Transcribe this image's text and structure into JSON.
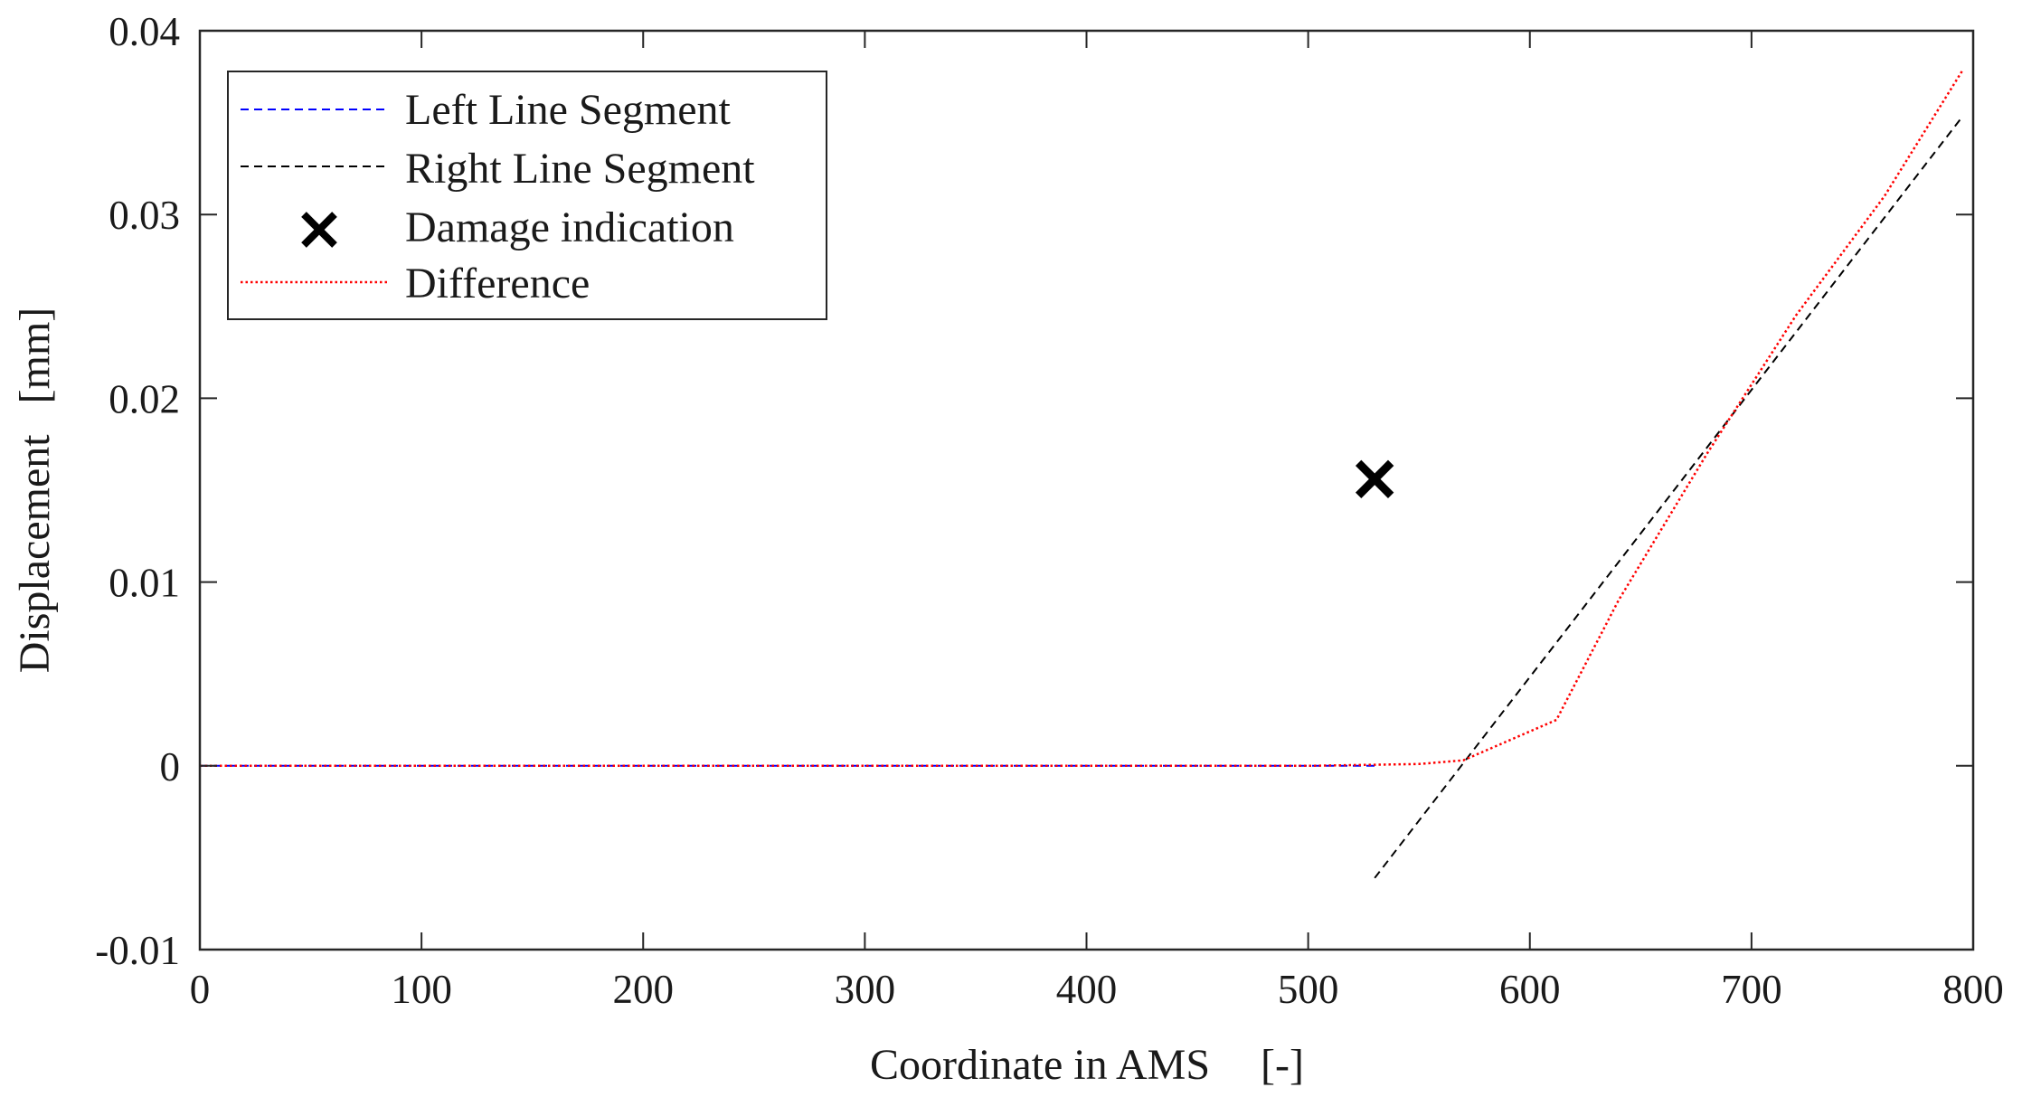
{
  "chart_data": {
    "type": "line",
    "title": "",
    "xlabel": "Coordinate in AMS",
    "xlabel_unit": "[-]",
    "ylabel": "Displacement",
    "ylabel_unit": "[mm]",
    "xlim": [
      0,
      800
    ],
    "ylim": [
      -0.01,
      0.04
    ],
    "xticks": [
      0,
      100,
      200,
      300,
      400,
      500,
      600,
      700,
      800
    ],
    "yticks": [
      -0.01,
      0,
      0.01,
      0.02,
      0.03,
      0.04
    ],
    "xtick_labels": [
      "0",
      "100",
      "200",
      "300",
      "400",
      "500",
      "600",
      "700",
      "800"
    ],
    "ytick_labels": [
      "-0.01",
      "0",
      "0.01",
      "0.02",
      "0.03",
      "0.04"
    ],
    "grid": false,
    "legend_position": "top-left",
    "series": [
      {
        "name": "Left Line Segment",
        "style": "dashed",
        "color": "#0000ff",
        "x": [
          0,
          530
        ],
        "y": [
          0,
          0
        ]
      },
      {
        "name": "Right Line Segment",
        "style": "dashed",
        "color": "#000000",
        "x": [
          530,
          795
        ],
        "y": [
          -0.0061,
          0.0353
        ]
      },
      {
        "name": "Damage indication",
        "style": "marker-x",
        "color": "#000000",
        "x": [
          530
        ],
        "y": [
          0.0156
        ]
      },
      {
        "name": "Difference",
        "style": "dotted",
        "color": "#ff0000",
        "x": [
          0,
          500,
          550,
          570,
          612,
          640,
          680,
          720,
          760,
          795
        ],
        "y": [
          0,
          0,
          0.0001,
          0.0003,
          0.0025,
          0.009,
          0.017,
          0.0245,
          0.031,
          0.0378
        ]
      }
    ]
  }
}
